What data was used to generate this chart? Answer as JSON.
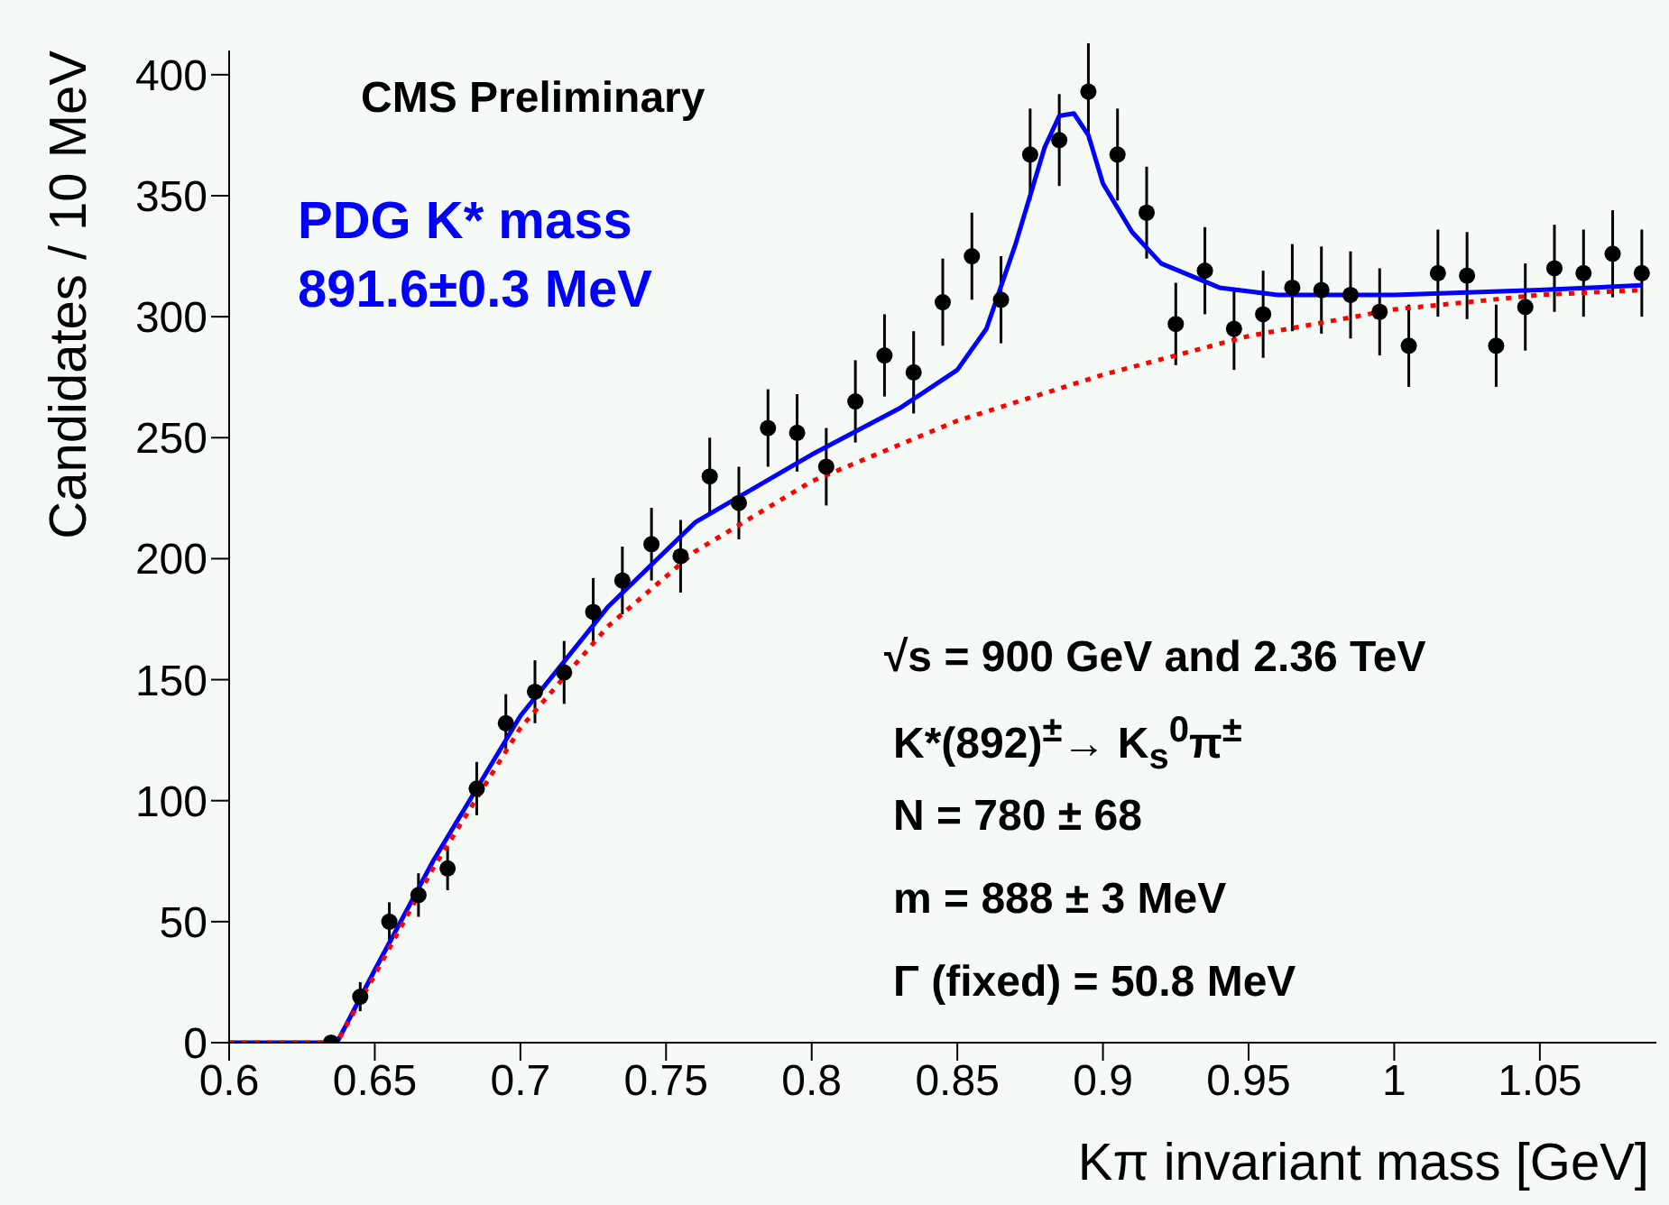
{
  "chart_data": {
    "type": "scatter",
    "xlabel": "Kπ invariant mass [GeV]",
    "ylabel": "Candidates / 10 MeV",
    "annotations": [
      "CMS Preliminary",
      "PDG K* mass",
      "891.6±0.3 MeV",
      "√s = 900 GeV and 2.36 TeV",
      "K*(892)$^{±}$→ K$_{s}$$^{0}$π$^{±}$",
      "N = 780  ± 68",
      "m = 888 ± 3 MeV",
      "Γ (fixed) = 50.8 MeV"
    ],
    "xlim": [
      0.6,
      1.09
    ],
    "xticks": [
      0.6,
      0.65,
      0.7,
      0.75,
      0.8,
      0.85,
      0.9,
      0.95,
      1,
      1.05
    ],
    "ylim": [
      0,
      410
    ],
    "yticks": [
      0,
      50,
      100,
      150,
      200,
      250,
      300,
      350,
      400
    ],
    "grid": false,
    "legend": false,
    "series": [
      {
        "color": "#000000",
        "marker": "circle",
        "x": [
          0.635,
          0.645,
          0.655,
          0.665,
          0.675,
          0.685,
          0.695,
          0.705,
          0.715,
          0.725,
          0.735,
          0.745,
          0.755,
          0.765,
          0.775,
          0.785,
          0.795,
          0.805,
          0.815,
          0.825,
          0.835,
          0.845,
          0.855,
          0.865,
          0.875,
          0.885,
          0.895,
          0.905,
          0.915,
          0.925,
          0.935,
          0.945,
          0.955,
          0.965,
          0.975,
          0.985,
          0.995,
          1.005,
          1.015,
          1.025,
          1.035,
          1.045,
          1.055,
          1.065,
          1.075,
          1.085
        ],
        "values": [
          0,
          19,
          50,
          61,
          72,
          105,
          132,
          145,
          153,
          178,
          191,
          206,
          201,
          234,
          223,
          254,
          252,
          238,
          265,
          284,
          277,
          306,
          325,
          307,
          367,
          373,
          393,
          367,
          343,
          297,
          319,
          295,
          301,
          312,
          311,
          309,
          302,
          288,
          318,
          317,
          288,
          304,
          320,
          318,
          326,
          318
        ],
        "errors": [
          null,
          6,
          8,
          9,
          9,
          11,
          12,
          13,
          13,
          14,
          14,
          15,
          15,
          16,
          15,
          16,
          16,
          16,
          17,
          17,
          17,
          18,
          18,
          18,
          19,
          19,
          20,
          19,
          19,
          17,
          18,
          17,
          18,
          18,
          18,
          18,
          18,
          17,
          18,
          18,
          17,
          18,
          18,
          18,
          18,
          18
        ]
      },
      {
        "type": "line",
        "color": "#0000ff",
        "line_style": "solid",
        "marker": "none",
        "x": [
          0.6,
          0.637,
          0.65,
          0.67,
          0.7,
          0.73,
          0.76,
          0.8,
          0.83,
          0.85,
          0.86,
          0.87,
          0.88,
          0.885,
          0.89,
          0.895,
          0.9,
          0.91,
          0.92,
          0.94,
          0.96,
          1.0,
          1.05,
          1.085
        ],
        "values": [
          0,
          0,
          30,
          75,
          135,
          180,
          215,
          243,
          262,
          278,
          295,
          330,
          370,
          383,
          384,
          375,
          355,
          335,
          322,
          312,
          309,
          309,
          311,
          313
        ]
      },
      {
        "type": "line",
        "color": "#ff0000",
        "line_style": "dotted",
        "marker": "none",
        "x": [
          0.6,
          0.637,
          0.65,
          0.67,
          0.7,
          0.73,
          0.76,
          0.8,
          0.85,
          0.9,
          0.95,
          1.0,
          1.05,
          1.085
        ],
        "values": [
          0,
          0,
          28,
          72,
          130,
          172,
          203,
          232,
          257,
          276,
          292,
          303,
          309,
          311
        ]
      }
    ]
  }
}
